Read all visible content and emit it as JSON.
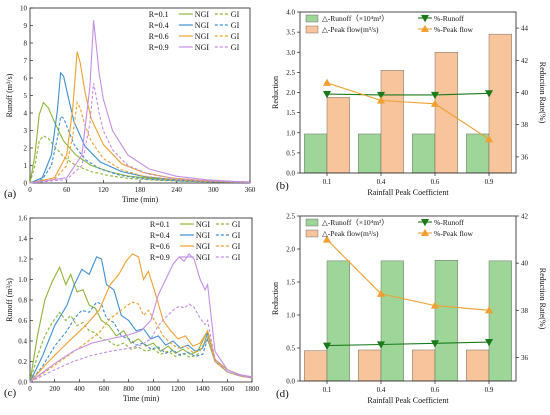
{
  "chart_data": [
    {
      "panel_label": "(a)",
      "type": "line",
      "xlabel": "Time (min)",
      "ylabel": "Runoff (m³/s)",
      "xlim": [
        0,
        360
      ],
      "ylim": [
        0,
        10
      ],
      "xticks": [
        "0",
        "60",
        "120",
        "180",
        "240",
        "300",
        "360"
      ],
      "yticks": [
        "0",
        "1",
        "2",
        "3",
        "4",
        "5",
        "6",
        "7",
        "8",
        "9",
        "10"
      ],
      "legend_placement": "top-right",
      "legend": [
        {
          "r": "R=0.1",
          "ngi": "NGI",
          "gi": "GI",
          "color": "#8fb339"
        },
        {
          "r": "R=0.4",
          "ngi": "NGI",
          "gi": "GI",
          "color": "#3e8fd1"
        },
        {
          "r": "R=0.6",
          "ngi": "NGI",
          "gi": "GI",
          "color": "#f0a030"
        },
        {
          "r": "R=0.9",
          "ngi": "NGI",
          "gi": "GI",
          "color": "#c58ee6"
        }
      ],
      "series": [
        {
          "color": "#8fb339",
          "dashed": false,
          "x": [
            0,
            8,
            15,
            22,
            30,
            40,
            55,
            75,
            100,
            130,
            160,
            200,
            250,
            300,
            360
          ],
          "y": [
            0,
            1.6,
            3.9,
            4.6,
            4.3,
            3.5,
            2.4,
            1.6,
            1.0,
            0.65,
            0.4,
            0.25,
            0.15,
            0.1,
            0.05
          ]
        },
        {
          "color": "#8fb339",
          "dashed": true,
          "x": [
            0,
            8,
            15,
            22,
            30,
            40,
            55,
            75,
            100,
            130,
            160,
            200,
            250,
            300,
            360
          ],
          "y": [
            0,
            1.0,
            2.4,
            2.7,
            2.55,
            2.1,
            1.5,
            1.0,
            0.65,
            0.42,
            0.27,
            0.17,
            0.1,
            0.06,
            0.03
          ]
        },
        {
          "color": "#3e8fd1",
          "dashed": false,
          "x": [
            0,
            20,
            35,
            45,
            50,
            55,
            62,
            72,
            90,
            115,
            150,
            190,
            240,
            300,
            360
          ],
          "y": [
            0,
            0.3,
            1.6,
            4.2,
            6.3,
            6.1,
            5.0,
            3.5,
            2.1,
            1.2,
            0.65,
            0.35,
            0.18,
            0.1,
            0.05
          ]
        },
        {
          "color": "#3e8fd1",
          "dashed": true,
          "x": [
            0,
            20,
            35,
            45,
            50,
            55,
            62,
            72,
            90,
            115,
            150,
            190,
            240,
            300,
            360
          ],
          "y": [
            0,
            0.2,
            1.0,
            2.6,
            3.8,
            3.7,
            3.1,
            2.2,
            1.35,
            0.8,
            0.42,
            0.23,
            0.12,
            0.06,
            0.03
          ]
        },
        {
          "color": "#f0a030",
          "dashed": false,
          "x": [
            0,
            40,
            60,
            70,
            77,
            82,
            90,
            100,
            120,
            150,
            185,
            230,
            280,
            330,
            360
          ],
          "y": [
            0,
            0.3,
            1.6,
            4.3,
            7.5,
            6.9,
            5.2,
            3.7,
            2.2,
            1.1,
            0.6,
            0.3,
            0.15,
            0.08,
            0.05
          ]
        },
        {
          "color": "#f0a030",
          "dashed": true,
          "x": [
            0,
            40,
            60,
            70,
            77,
            82,
            90,
            100,
            120,
            150,
            185,
            230,
            280,
            330,
            360
          ],
          "y": [
            0,
            0.2,
            1.0,
            2.7,
            4.6,
            4.3,
            3.3,
            2.4,
            1.4,
            0.75,
            0.4,
            0.2,
            0.1,
            0.05,
            0.03
          ]
        },
        {
          "color": "#c58ee6",
          "dashed": false,
          "x": [
            0,
            60,
            85,
            98,
            104,
            108,
            113,
            120,
            135,
            160,
            195,
            240,
            290,
            330,
            360
          ],
          "y": [
            0,
            0.3,
            1.6,
            5.5,
            9.3,
            8.0,
            6.3,
            4.8,
            3.0,
            1.6,
            0.8,
            0.38,
            0.18,
            0.1,
            0.05
          ]
        },
        {
          "color": "#c58ee6",
          "dashed": true,
          "x": [
            0,
            60,
            85,
            98,
            104,
            108,
            113,
            120,
            135,
            160,
            195,
            240,
            290,
            330,
            360
          ],
          "y": [
            0,
            0.2,
            1.0,
            3.4,
            5.7,
            5.0,
            4.0,
            3.0,
            1.9,
            1.0,
            0.5,
            0.24,
            0.12,
            0.06,
            0.03
          ]
        }
      ]
    },
    {
      "panel_label": "(b)",
      "type": "bar",
      "xlabel": "Rainfall Peak Coefficient",
      "ylabel": "Reduction",
      "y2label": "Reduction Rate(%)",
      "categories": [
        "0.1",
        "0.4",
        "0.6",
        "0.9"
      ],
      "ylim": [
        0,
        4.0
      ],
      "yticks": [
        "0.0",
        "0.5",
        "1.0",
        "1.5",
        "2.0",
        "2.5",
        "3.0",
        "3.5",
        "4.0"
      ],
      "y2lim": [
        35,
        45
      ],
      "y2ticks": [
        "36",
        "38",
        "40",
        "42",
        "44"
      ],
      "legend": [
        {
          "label": "△-Runoff（×10⁴m³）",
          "color": "#9ed69a"
        },
        {
          "label": "△-Peak flow(m³/s)",
          "color": "#f8c49c"
        },
        {
          "label": "%-Runoff",
          "color": "#1a7a1a"
        },
        {
          "label": "%-Peak flow",
          "color": "#f0a030"
        }
      ],
      "series": [
        {
          "name": "△-Runoff（×10⁴m³）",
          "kind": "bar",
          "color": "#9ed69a",
          "values": [
            0.97,
            0.97,
            0.97,
            0.97
          ]
        },
        {
          "name": "△-Peak flow(m³/s)",
          "kind": "bar",
          "color": "#f8c49c",
          "values": [
            1.88,
            2.55,
            3.0,
            3.45
          ]
        },
        {
          "name": "%-Runoff",
          "kind": "line",
          "axis": "right",
          "color": "#1a7a1a",
          "marker": "down-triangle",
          "values": [
            39.9,
            39.85,
            39.85,
            39.95
          ]
        },
        {
          "name": "%-Peak flow",
          "kind": "line",
          "axis": "right",
          "color": "#f0a030",
          "marker": "up-triangle",
          "values": [
            40.6,
            39.5,
            39.3,
            37.1
          ]
        }
      ]
    },
    {
      "panel_label": "(c)",
      "type": "line",
      "xlabel": "Time (min)",
      "ylabel": "Runoff (m³/s)",
      "xlim": [
        0,
        1800
      ],
      "ylim": [
        0,
        1.6
      ],
      "xticks": [
        "0",
        "200",
        "400",
        "600",
        "800",
        "1000",
        "1200",
        "1400",
        "1600",
        "1800"
      ],
      "yticks": [
        "0.0",
        "0.2",
        "0.4",
        "0.6",
        "0.8",
        "1.0",
        "1.2",
        "1.4",
        "1.6"
      ],
      "legend_placement": "top-right",
      "legend": [
        {
          "r": "R=0.1",
          "ngi": "NGI",
          "gi": "GI",
          "color": "#8fb339"
        },
        {
          "r": "R=0.4",
          "ngi": "NGI",
          "gi": "GI",
          "color": "#3e8fd1"
        },
        {
          "r": "R=0.6",
          "ngi": "NGI",
          "gi": "GI",
          "color": "#f0a030"
        },
        {
          "r": "R=0.9",
          "ngi": "NGI",
          "gi": "GI",
          "color": "#c58ee6"
        }
      ],
      "series": [
        {
          "color": "#8fb339",
          "dashed": false,
          "x": [
            0,
            60,
            120,
            180,
            240,
            290,
            330,
            380,
            430,
            480,
            530,
            580,
            640,
            700,
            760,
            820,
            880,
            940,
            1000,
            1060,
            1120,
            1180,
            1240,
            1300,
            1360,
            1420,
            1440,
            1500,
            1600,
            1700,
            1800
          ],
          "y": [
            0,
            0.45,
            0.8,
            0.98,
            1.12,
            0.95,
            1.05,
            0.88,
            0.9,
            0.75,
            0.72,
            0.6,
            0.55,
            0.45,
            0.5,
            0.38,
            0.42,
            0.35,
            0.38,
            0.3,
            0.35,
            0.28,
            0.32,
            0.27,
            0.3,
            0.45,
            0.5,
            0.22,
            0.12,
            0.07,
            0.05
          ]
        },
        {
          "color": "#8fb339",
          "dashed": true,
          "x": [
            0,
            60,
            120,
            180,
            240,
            290,
            330,
            380,
            430,
            480,
            530,
            580,
            640,
            700,
            760,
            820,
            880,
            940,
            1000,
            1060,
            1120,
            1180,
            1240,
            1300,
            1360,
            1420,
            1440,
            1500,
            1600,
            1700,
            1800
          ],
          "y": [
            0,
            0.25,
            0.45,
            0.58,
            0.68,
            0.6,
            0.65,
            0.55,
            0.58,
            0.5,
            0.48,
            0.42,
            0.4,
            0.35,
            0.38,
            0.32,
            0.34,
            0.3,
            0.32,
            0.27,
            0.3,
            0.25,
            0.28,
            0.24,
            0.27,
            0.38,
            0.42,
            0.2,
            0.1,
            0.06,
            0.04
          ]
        },
        {
          "color": "#3e8fd1",
          "dashed": false,
          "x": [
            0,
            100,
            200,
            300,
            360,
            420,
            480,
            540,
            580,
            620,
            680,
            740,
            800,
            860,
            920,
            980,
            1040,
            1100,
            1160,
            1220,
            1280,
            1340,
            1400,
            1440,
            1500,
            1600,
            1700,
            1800
          ],
          "y": [
            0,
            0.25,
            0.55,
            0.75,
            0.95,
            1.1,
            1.05,
            1.22,
            1.2,
            0.95,
            0.9,
            0.65,
            0.6,
            0.5,
            0.52,
            0.42,
            0.45,
            0.36,
            0.4,
            0.33,
            0.36,
            0.3,
            0.33,
            0.48,
            0.22,
            0.12,
            0.07,
            0.05
          ]
        },
        {
          "color": "#3e8fd1",
          "dashed": true,
          "x": [
            0,
            100,
            200,
            300,
            360,
            420,
            480,
            540,
            580,
            620,
            680,
            740,
            800,
            860,
            920,
            980,
            1040,
            1100,
            1160,
            1220,
            1280,
            1340,
            1400,
            1440,
            1500,
            1600,
            1700,
            1800
          ],
          "y": [
            0,
            0.15,
            0.35,
            0.5,
            0.62,
            0.7,
            0.68,
            0.78,
            0.76,
            0.62,
            0.58,
            0.45,
            0.42,
            0.36,
            0.38,
            0.32,
            0.34,
            0.28,
            0.31,
            0.26,
            0.29,
            0.25,
            0.27,
            0.42,
            0.2,
            0.1,
            0.06,
            0.04
          ]
        },
        {
          "color": "#f0a030",
          "dashed": false,
          "x": [
            0,
            150,
            300,
            450,
            560,
            650,
            720,
            780,
            830,
            880,
            920,
            960,
            1020,
            1080,
            1140,
            1200,
            1260,
            1320,
            1380,
            1440,
            1500,
            1600,
            1700,
            1800
          ],
          "y": [
            0,
            0.2,
            0.38,
            0.55,
            0.7,
            0.95,
            1.05,
            1.18,
            1.25,
            1.22,
            1.0,
            1.08,
            0.85,
            0.6,
            0.5,
            0.42,
            0.45,
            0.35,
            0.38,
            0.5,
            0.22,
            0.12,
            0.07,
            0.05
          ]
        },
        {
          "color": "#f0a030",
          "dashed": true,
          "x": [
            0,
            150,
            300,
            450,
            560,
            650,
            720,
            780,
            830,
            880,
            920,
            960,
            1020,
            1080,
            1140,
            1200,
            1260,
            1320,
            1380,
            1440,
            1500,
            1600,
            1700,
            1800
          ],
          "y": [
            0,
            0.12,
            0.25,
            0.38,
            0.48,
            0.62,
            0.68,
            0.74,
            0.78,
            0.76,
            0.65,
            0.7,
            0.58,
            0.45,
            0.38,
            0.33,
            0.35,
            0.29,
            0.31,
            0.44,
            0.2,
            0.1,
            0.06,
            0.04
          ]
        },
        {
          "color": "#c58ee6",
          "dashed": false,
          "x": [
            0,
            200,
            350,
            500,
            650,
            800,
            900,
            980,
            1040,
            1100,
            1160,
            1210,
            1250,
            1290,
            1330,
            1380,
            1420,
            1440,
            1500,
            1600,
            1700,
            1800
          ],
          "y": [
            0,
            0.18,
            0.3,
            0.38,
            0.42,
            0.46,
            0.5,
            0.6,
            0.85,
            1.0,
            1.15,
            1.22,
            1.18,
            1.25,
            1.2,
            1.0,
            0.9,
            0.95,
            0.3,
            0.12,
            0.07,
            0.05
          ]
        },
        {
          "color": "#c58ee6",
          "dashed": true,
          "x": [
            0,
            200,
            350,
            500,
            650,
            800,
            900,
            980,
            1040,
            1100,
            1160,
            1210,
            1250,
            1290,
            1330,
            1380,
            1420,
            1440,
            1500,
            1600,
            1700,
            1800
          ],
          "y": [
            0,
            0.12,
            0.2,
            0.26,
            0.3,
            0.33,
            0.36,
            0.42,
            0.55,
            0.63,
            0.7,
            0.74,
            0.72,
            0.76,
            0.73,
            0.62,
            0.56,
            0.6,
            0.22,
            0.1,
            0.06,
            0.04
          ]
        }
      ]
    },
    {
      "panel_label": "(d)",
      "type": "bar",
      "xlabel": "Rainfall Peak Coefficient",
      "ylabel": "Reduction",
      "y2label": "Reduction Rate(%)",
      "categories": [
        "0.1",
        "0.4",
        "0.6",
        "0.9"
      ],
      "ylim": [
        0,
        2.5
      ],
      "yticks": [
        "0.0",
        "0.5",
        "1.0",
        "1.5",
        "2.0",
        "2.5"
      ],
      "y2lim": [
        35,
        42
      ],
      "y2ticks": [
        "36",
        "38",
        "40",
        "42"
      ],
      "legend": [
        {
          "label": "△-Runoff（×10⁴m³）",
          "color": "#9ed69a"
        },
        {
          "label": "△-Peak flow(m³/s)",
          "color": "#f8c49c"
        },
        {
          "label": "%-Runoff",
          "color": "#1a7a1a"
        },
        {
          "label": "%-Peak flow",
          "color": "#f0a030"
        }
      ],
      "series": [
        {
          "name": "△-Peak flow(m³/s)",
          "kind": "bar",
          "color": "#f8c49c",
          "values": [
            0.46,
            0.47,
            0.47,
            0.47
          ]
        },
        {
          "name": "△-Runoff（×10⁴m³）",
          "kind": "bar",
          "color": "#9ed69a",
          "values": [
            1.82,
            1.82,
            1.83,
            1.82
          ]
        },
        {
          "name": "%-Runoff",
          "kind": "line",
          "axis": "right",
          "color": "#1a7a1a",
          "marker": "down-triangle",
          "values": [
            36.5,
            36.55,
            36.6,
            36.65
          ]
        },
        {
          "name": "%-Peak flow",
          "kind": "line",
          "axis": "right",
          "color": "#f0a030",
          "marker": "up-triangle",
          "values": [
            41.0,
            38.7,
            38.2,
            38.0
          ]
        }
      ]
    }
  ]
}
